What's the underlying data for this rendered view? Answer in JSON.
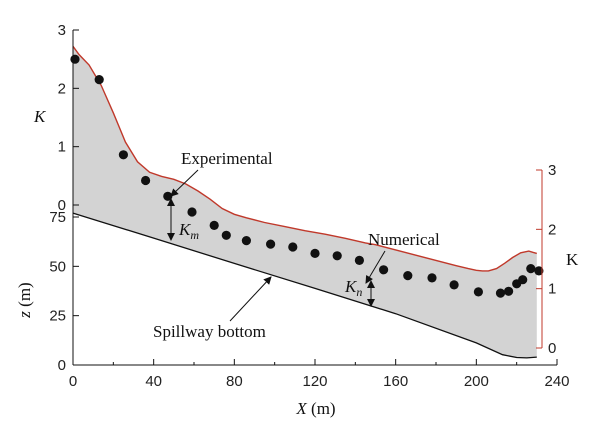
{
  "chart_data": {
    "type": "line",
    "x_axis": {
      "label_var": "X",
      "label_unit": " (m)",
      "range": [
        0,
        240
      ],
      "ticks": [
        "0",
        "40",
        "80",
        "120",
        "160",
        "200",
        "240"
      ]
    },
    "z_axis": {
      "label_var": "z",
      "label_unit": " (m)",
      "range": [
        0,
        90
      ],
      "ticks": [
        "0",
        "25",
        "50",
        "75"
      ]
    },
    "k_left_axis": {
      "label": "K",
      "range": [
        0,
        3
      ],
      "ticks": [
        "0",
        "1",
        "2",
        "3"
      ]
    },
    "k_right_axis": {
      "label": "K",
      "range": [
        0,
        3
      ],
      "ticks": [
        "0",
        "1",
        "2",
        "3"
      ]
    },
    "spillway_bottom": {
      "x": [
        0,
        40,
        80,
        120,
        160,
        200,
        213,
        220,
        225,
        230
      ],
      "z": [
        77,
        64.3,
        51.5,
        38.8,
        26,
        11.2,
        5.2,
        3.8,
        3.6,
        4
      ]
    },
    "numerical_surface": {
      "x": [
        0,
        3,
        8,
        14,
        20,
        26,
        32,
        38,
        44,
        50,
        56,
        62,
        68,
        74,
        80,
        86,
        95,
        105,
        115,
        125,
        135,
        145,
        150,
        160,
        170,
        180,
        190,
        196,
        200,
        203,
        206,
        210,
        214,
        218,
        222,
        226,
        228,
        230
      ],
      "k": [
        2.72,
        2.58,
        2.4,
        2.05,
        1.58,
        1.08,
        0.74,
        0.56,
        0.49,
        0.44,
        0.36,
        0.24,
        0.1,
        -0.06,
        -0.16,
        -0.22,
        -0.3,
        -0.37,
        -0.44,
        -0.5,
        -0.57,
        -0.65,
        -0.68,
        -0.77,
        -0.86,
        -0.95,
        -1.04,
        -1.09,
        -1.12,
        -1.13,
        -1.13,
        -1.09,
        -1.0,
        -0.9,
        -0.82,
        -0.79,
        -0.81,
        -0.83
      ]
    },
    "experimental": {
      "x": [
        1,
        13,
        25,
        36,
        47,
        59,
        70,
        76,
        86,
        98,
        109,
        120,
        131,
        142,
        154,
        166,
        178,
        189,
        201,
        212,
        216,
        220,
        223,
        227,
        231
      ],
      "k": [
        2.5,
        2.15,
        0.86,
        0.42,
        0.15,
        -0.12,
        -0.35,
        -0.52,
        -0.61,
        -0.67,
        -0.72,
        -0.83,
        -0.87,
        -0.95,
        -1.11,
        -1.21,
        -1.25,
        -1.37,
        -1.49,
        -1.51,
        -1.48,
        -1.35,
        -1.28,
        -1.09,
        -1.13
      ]
    },
    "annotations": {
      "experimental": "Experimental",
      "numerical": "Numerical",
      "spillway": "Spillway bottom",
      "km_base": "K",
      "km_sub": "m",
      "kn_base": "K",
      "kn_sub": "n"
    },
    "colors": {
      "surface_line": "#c0392b",
      "bottom_line": "#111111",
      "fill": "#d3d3d3",
      "right_axis": "#c0392b",
      "points": "#111111"
    }
  }
}
